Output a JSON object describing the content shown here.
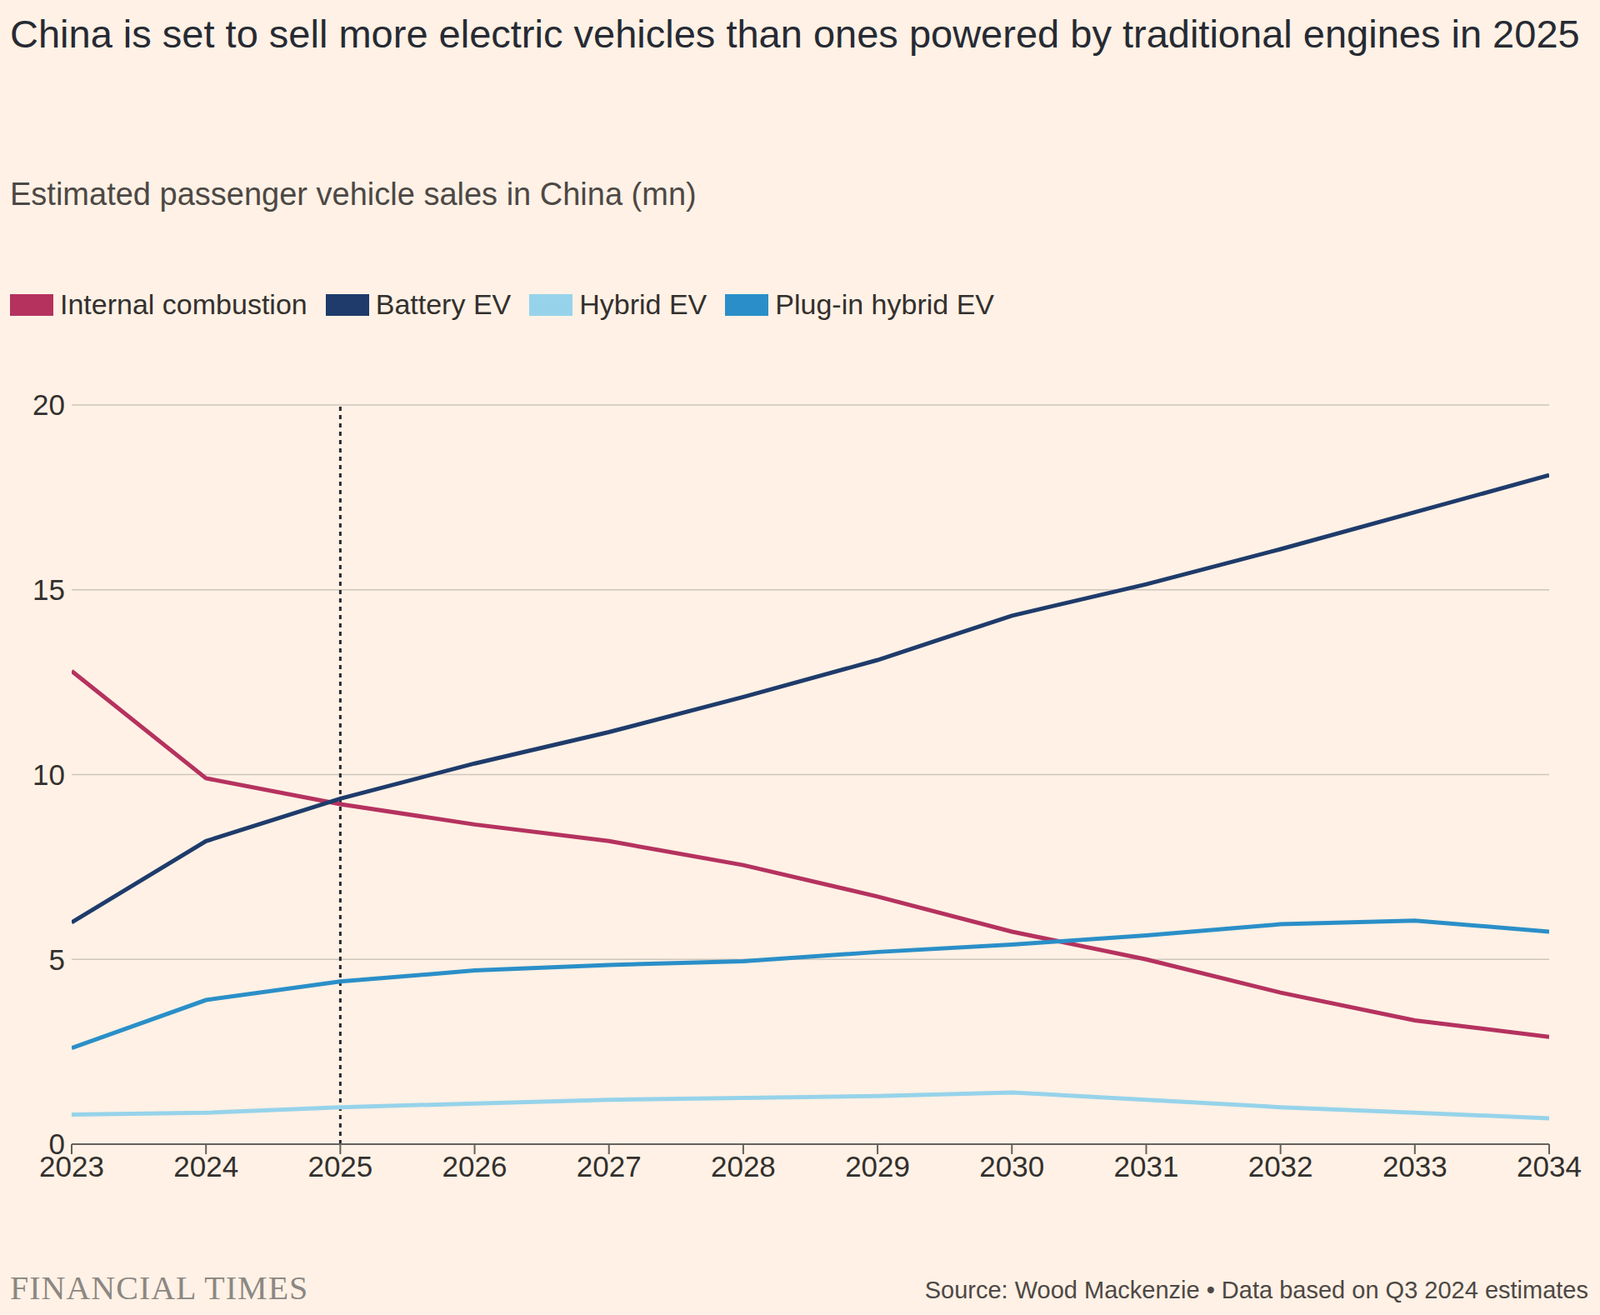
{
  "chart_data": {
    "type": "line",
    "title": "China is set to sell more electric vehicles than ones powered by traditional engines in 2025",
    "subtitle": "Estimated passenger vehicle sales in China (mn)",
    "source": "Source: Wood Mackenzie • Data based on Q3 2024 estimates",
    "logo": "FINANCIAL TIMES",
    "x": [
      2023,
      2024,
      2025,
      2026,
      2027,
      2028,
      2029,
      2030,
      2031,
      2032,
      2033,
      2034
    ],
    "series": [
      {
        "name": "Internal combustion",
        "color": "#b5325f",
        "values": [
          12.8,
          9.9,
          9.2,
          8.65,
          8.2,
          7.55,
          6.7,
          5.75,
          5.0,
          4.1,
          3.35,
          2.9
        ]
      },
      {
        "name": "Battery EV",
        "color": "#1e3b6b",
        "values": [
          6.0,
          8.2,
          9.35,
          10.3,
          11.15,
          12.1,
          13.1,
          14.3,
          15.15,
          16.1,
          17.1,
          18.1
        ]
      },
      {
        "name": "Hybrid EV",
        "color": "#96d3ea",
        "values": [
          0.8,
          0.85,
          1.0,
          1.1,
          1.2,
          1.25,
          1.3,
          1.4,
          1.2,
          1.0,
          0.85,
          0.7
        ]
      },
      {
        "name": "Plug-in hybrid EV",
        "color": "#2a8fc8",
        "values": [
          2.6,
          3.9,
          4.4,
          4.7,
          4.85,
          4.95,
          5.2,
          5.4,
          5.65,
          5.95,
          6.05,
          5.75
        ]
      }
    ],
    "vline": 2025,
    "xlim": [
      2023,
      2034
    ],
    "xticks": [
      2023,
      2024,
      2025,
      2026,
      2027,
      2028,
      2029,
      2030,
      2031,
      2032,
      2033,
      2034
    ],
    "ylim": [
      0,
      20
    ],
    "yticks": [
      0,
      5,
      10,
      15,
      20
    ],
    "grid": true,
    "legend": "top-left"
  }
}
